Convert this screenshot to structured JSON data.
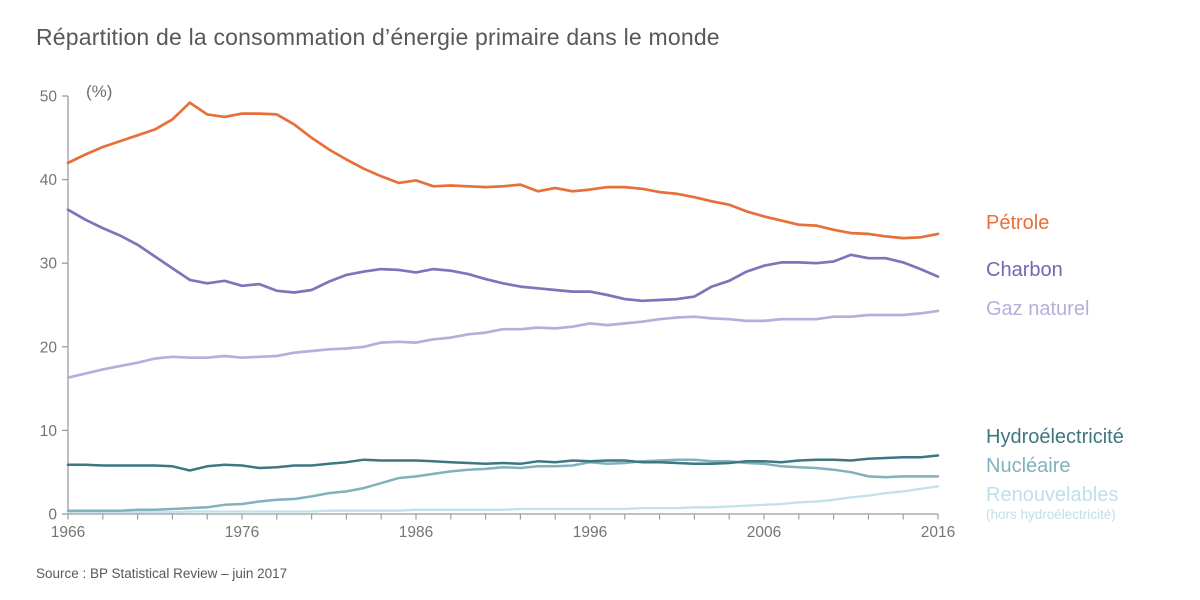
{
  "title": "Répartition de la consommation d’énergie primaire dans le monde",
  "source": "Source : BP Statistical Review – juin 2017",
  "axes": {
    "y": {
      "unit": "(%)",
      "min": 0,
      "max": 50,
      "ticks": [
        0,
        10,
        20,
        30,
        40,
        50
      ]
    },
    "x": {
      "min": 1966,
      "max": 2016,
      "ticks": [
        1966,
        1976,
        1986,
        1996,
        2006,
        2016
      ],
      "minor_step": 2
    }
  },
  "colors": {
    "axis": "#9c9c9c",
    "tick_label": "#757575",
    "title": "#57585a",
    "source": "#58585a"
  },
  "legend": {
    "items": [
      {
        "id": "petrole",
        "label": "Pétrole",
        "color": "#E5703A"
      },
      {
        "id": "charbon",
        "label": "Charbon",
        "color": "#6F68B2"
      },
      {
        "id": "gaz",
        "label": "Gaz naturel",
        "color": "#B7AEDC"
      },
      {
        "id": "hydro",
        "label": "Hydroélectricité",
        "color": "#3E7682"
      },
      {
        "id": "nucleaire",
        "label": "Nucléaire",
        "color": "#7FB2BC"
      },
      {
        "id": "renouvelables",
        "label": "Renouvelables",
        "sub": "(hors hydroélectricité)",
        "color": "#BEE0E9"
      }
    ]
  },
  "chart_data": {
    "type": "line",
    "title": "Répartition de la consommation d’énergie primaire dans le monde",
    "ylabel": "(%)",
    "xlabel": "",
    "ylim": [
      0,
      50
    ],
    "xlim": [
      1966,
      2016
    ],
    "grid": false,
    "legend_position": "right",
    "x": [
      1966,
      1967,
      1968,
      1969,
      1970,
      1971,
      1972,
      1973,
      1974,
      1975,
      1976,
      1977,
      1978,
      1979,
      1980,
      1981,
      1982,
      1983,
      1984,
      1985,
      1986,
      1987,
      1988,
      1989,
      1990,
      1991,
      1992,
      1993,
      1994,
      1995,
      1996,
      1997,
      1998,
      1999,
      2000,
      2001,
      2002,
      2003,
      2004,
      2005,
      2006,
      2007,
      2008,
      2009,
      2010,
      2011,
      2012,
      2013,
      2014,
      2015,
      2016
    ],
    "series": [
      {
        "id": "petrole",
        "name": "Pétrole",
        "color": "#E5703A",
        "width": 2.7,
        "values": [
          42.0,
          43.0,
          43.9,
          44.6,
          45.3,
          46.0,
          47.2,
          49.2,
          47.8,
          47.5,
          47.9,
          47.9,
          47.8,
          46.6,
          45.0,
          43.6,
          42.4,
          41.3,
          40.4,
          39.6,
          39.9,
          39.2,
          39.3,
          39.2,
          39.1,
          39.2,
          39.4,
          38.6,
          39.0,
          38.6,
          38.8,
          39.1,
          39.1,
          38.9,
          38.5,
          38.3,
          37.9,
          37.4,
          37.0,
          36.2,
          35.6,
          35.1,
          34.6,
          34.5,
          34.0,
          33.6,
          33.5,
          33.2,
          33.0,
          33.1,
          33.5
        ]
      },
      {
        "id": "charbon",
        "name": "Charbon",
        "color": "#7B76BA",
        "width": 2.7,
        "values": [
          36.4,
          35.2,
          34.2,
          33.3,
          32.2,
          30.8,
          29.4,
          28.0,
          27.6,
          27.9,
          27.3,
          27.5,
          26.7,
          26.5,
          26.8,
          27.8,
          28.6,
          29.0,
          29.3,
          29.2,
          28.9,
          29.3,
          29.1,
          28.7,
          28.1,
          27.6,
          27.2,
          27.0,
          26.8,
          26.6,
          26.6,
          26.2,
          25.7,
          25.5,
          25.6,
          25.7,
          26.0,
          27.2,
          27.9,
          29.0,
          29.7,
          30.1,
          30.1,
          30.0,
          30.2,
          31.0,
          30.6,
          30.6,
          30.1,
          29.3,
          28.4
        ]
      },
      {
        "id": "gaz",
        "name": "Gaz naturel",
        "color": "#B7AEDC",
        "width": 2.7,
        "values": [
          16.3,
          16.8,
          17.3,
          17.7,
          18.1,
          18.6,
          18.8,
          18.7,
          18.7,
          18.9,
          18.7,
          18.8,
          18.9,
          19.3,
          19.5,
          19.7,
          19.8,
          20.0,
          20.5,
          20.6,
          20.5,
          20.9,
          21.1,
          21.5,
          21.7,
          22.1,
          22.1,
          22.3,
          22.2,
          22.4,
          22.8,
          22.6,
          22.8,
          23.0,
          23.3,
          23.5,
          23.6,
          23.4,
          23.3,
          23.1,
          23.1,
          23.3,
          23.3,
          23.3,
          23.6,
          23.6,
          23.8,
          23.8,
          23.8,
          24.0,
          24.3
        ]
      },
      {
        "id": "hydro",
        "name": "Hydroélectricité",
        "color": "#3E7682",
        "width": 2.5,
        "values": [
          5.9,
          5.9,
          5.8,
          5.8,
          5.8,
          5.8,
          5.7,
          5.2,
          5.7,
          5.9,
          5.8,
          5.5,
          5.6,
          5.8,
          5.8,
          6.0,
          6.2,
          6.5,
          6.4,
          6.4,
          6.4,
          6.3,
          6.2,
          6.1,
          6.0,
          6.1,
          6.0,
          6.3,
          6.2,
          6.4,
          6.3,
          6.4,
          6.4,
          6.2,
          6.2,
          6.1,
          6.0,
          6.0,
          6.1,
          6.3,
          6.3,
          6.2,
          6.4,
          6.5,
          6.5,
          6.4,
          6.6,
          6.7,
          6.8,
          6.8,
          7.0
        ]
      },
      {
        "id": "nucleaire",
        "name": "Nucléaire",
        "color": "#7FB2BC",
        "width": 2.5,
        "values": [
          0.4,
          0.4,
          0.4,
          0.4,
          0.5,
          0.5,
          0.6,
          0.7,
          0.8,
          1.1,
          1.2,
          1.5,
          1.7,
          1.8,
          2.1,
          2.5,
          2.7,
          3.1,
          3.7,
          4.3,
          4.5,
          4.8,
          5.1,
          5.3,
          5.4,
          5.6,
          5.5,
          5.7,
          5.7,
          5.8,
          6.2,
          6.0,
          6.1,
          6.3,
          6.4,
          6.5,
          6.5,
          6.3,
          6.3,
          6.1,
          6.0,
          5.7,
          5.6,
          5.5,
          5.3,
          5.0,
          4.5,
          4.4,
          4.5,
          4.5,
          4.5
        ]
      },
      {
        "id": "renouvelables",
        "name": "Renouvelables (hors hydroélectricité)",
        "color": "#C2E2EA",
        "width": 2.3,
        "values": [
          0.2,
          0.2,
          0.2,
          0.2,
          0.2,
          0.2,
          0.2,
          0.3,
          0.3,
          0.3,
          0.3,
          0.3,
          0.3,
          0.3,
          0.3,
          0.4,
          0.4,
          0.4,
          0.4,
          0.4,
          0.5,
          0.5,
          0.5,
          0.5,
          0.5,
          0.5,
          0.6,
          0.6,
          0.6,
          0.6,
          0.6,
          0.6,
          0.6,
          0.7,
          0.7,
          0.7,
          0.8,
          0.8,
          0.9,
          1.0,
          1.1,
          1.2,
          1.4,
          1.5,
          1.7,
          2.0,
          2.2,
          2.5,
          2.7,
          3.0,
          3.3
        ]
      }
    ]
  }
}
